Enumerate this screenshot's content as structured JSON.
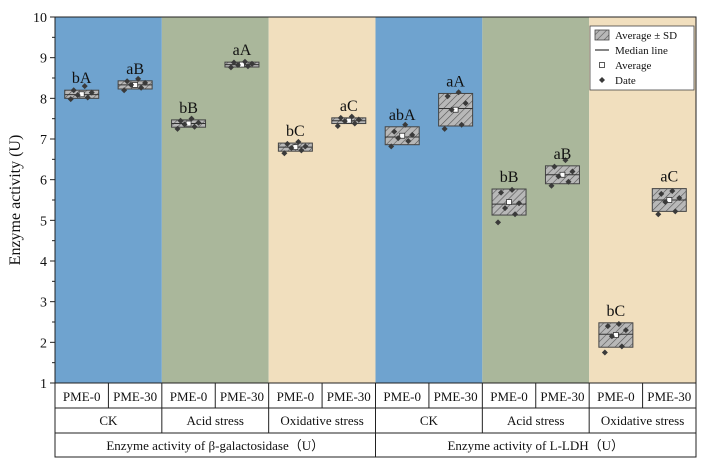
{
  "chart_data": {
    "type": "box",
    "ylabel": "Enzyme activity (U)",
    "ylim": [
      1,
      10
    ],
    "yticks": [
      1,
      2,
      3,
      4,
      5,
      6,
      7,
      8,
      9,
      10
    ],
    "legend": {
      "position": "top-right",
      "items": [
        "Average ± SD",
        "Median line",
        "Average",
        "Date"
      ]
    },
    "enzymes": [
      {
        "label": "Enzyme activity of β-galactosidase（U）",
        "conditions": [
          {
            "label": "CK",
            "bg": "#6fa3cf",
            "boxes": [
              {
                "label": "PME-0",
                "mean": 8.1,
                "sd": 0.1,
                "median": 8.09,
                "sig": "bA",
                "points": [
                  7.98,
                  8.02,
                  8.08,
                  8.14,
                  8.2,
                  8.3
                ]
              },
              {
                "label": "PME-30",
                "mean": 8.33,
                "sd": 0.1,
                "median": 8.33,
                "sig": "aB",
                "points": [
                  8.2,
                  8.26,
                  8.33,
                  8.38,
                  8.42,
                  8.48
                ]
              }
            ]
          },
          {
            "label": "Acid stress",
            "bg": "#aab79b",
            "boxes": [
              {
                "label": "PME-0",
                "mean": 7.38,
                "sd": 0.09,
                "median": 7.38,
                "sig": "bB",
                "points": [
                  7.25,
                  7.3,
                  7.36,
                  7.4,
                  7.45,
                  7.5
                ]
              },
              {
                "label": "PME-30",
                "mean": 8.83,
                "sd": 0.06,
                "median": 8.83,
                "sig": "aA",
                "points": [
                  8.76,
                  8.79,
                  8.82,
                  8.85,
                  8.88,
                  8.9
                ]
              }
            ]
          },
          {
            "label": "Oxidative stress",
            "bg": "#f1dfbe",
            "boxes": [
              {
                "label": "PME-0",
                "mean": 6.8,
                "sd": 0.1,
                "median": 6.8,
                "sig": "bC",
                "points": [
                  6.65,
                  6.72,
                  6.78,
                  6.82,
                  6.88,
                  6.93
                ]
              },
              {
                "label": "PME-30",
                "mean": 7.45,
                "sd": 0.07,
                "median": 7.45,
                "sig": "aC",
                "points": [
                  7.32,
                  7.38,
                  7.44,
                  7.48,
                  7.52,
                  7.55
                ]
              }
            ]
          }
        ]
      },
      {
        "label": "Enzyme activity of L-LDH（U）",
        "conditions": [
          {
            "label": "CK",
            "bg": "#6fa3cf",
            "boxes": [
              {
                "label": "PME-0",
                "mean": 7.08,
                "sd": 0.22,
                "median": 7.05,
                "sig": "abA",
                "points": [
                  6.82,
                  6.95,
                  7.02,
                  7.1,
                  7.18,
                  7.35
                ]
              },
              {
                "label": "PME-30",
                "mean": 7.72,
                "sd": 0.4,
                "median": 7.75,
                "sig": "aA",
                "points": [
                  7.25,
                  7.35,
                  7.72,
                  7.88,
                  8.05,
                  8.15
                ]
              }
            ]
          },
          {
            "label": "Acid stress",
            "bg": "#aab79b",
            "boxes": [
              {
                "label": "PME-0",
                "mean": 5.45,
                "sd": 0.32,
                "median": 5.4,
                "sig": "bB",
                "points": [
                  4.95,
                  5.15,
                  5.3,
                  5.42,
                  5.68,
                  5.75
                ]
              },
              {
                "label": "PME-30",
                "mean": 6.12,
                "sd": 0.22,
                "median": 6.12,
                "sig": "aB",
                "points": [
                  5.85,
                  5.95,
                  6.08,
                  6.2,
                  6.32,
                  6.48
                ]
              }
            ]
          },
          {
            "label": "Oxidative stress",
            "bg": "#f1dfbe",
            "boxes": [
              {
                "label": "PME-0",
                "mean": 2.18,
                "sd": 0.3,
                "median": 2.2,
                "sig": "bC",
                "points": [
                  1.75,
                  1.9,
                  2.15,
                  2.3,
                  2.4,
                  2.45
                ]
              },
              {
                "label": "PME-30",
                "mean": 5.5,
                "sd": 0.28,
                "median": 5.5,
                "sig": "aC",
                "points": [
                  5.15,
                  5.22,
                  5.45,
                  5.55,
                  5.65,
                  5.72
                ]
              }
            ]
          }
        ]
      }
    ]
  }
}
